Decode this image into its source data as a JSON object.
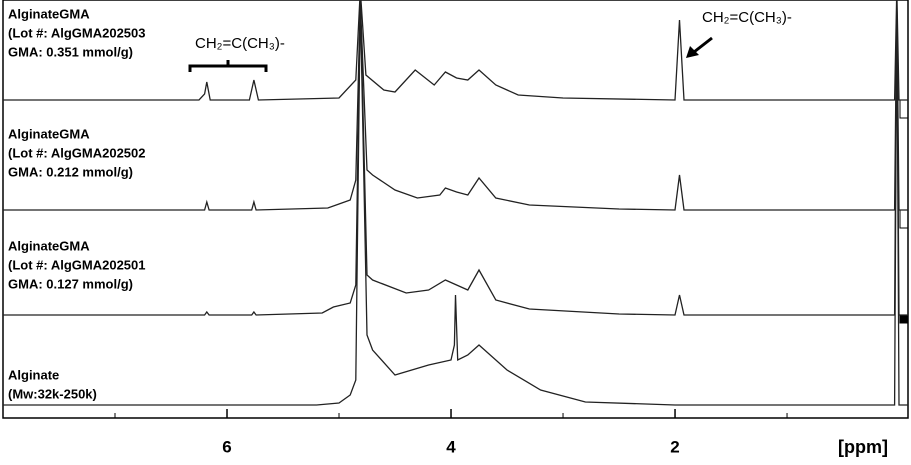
{
  "chart_data": {
    "type": "line",
    "x_label": "[ppm]",
    "xlim": [
      8.0,
      -0.08
    ],
    "xticks": [
      6,
      4,
      2
    ],
    "xminorticks": [
      7,
      5,
      3,
      1
    ],
    "color": "#222222",
    "series": [
      {
        "name": "AlginateGMA",
        "label_lines": [
          "(Lot #: AlgGMA202503",
          "GMA: 0.351 mmol/g)"
        ],
        "x": [
          8.0,
          6.25,
          6.2,
          6.18,
          6.15,
          5.8,
          5.76,
          5.72,
          5.0,
          4.85,
          4.81,
          4.76,
          4.6,
          4.5,
          4.32,
          4.15,
          4.05,
          3.95,
          3.85,
          3.75,
          3.6,
          3.4,
          3.0,
          2.0,
          1.96,
          1.92,
          0.5,
          0.04,
          0.02,
          0.0,
          -0.08
        ],
        "values": [
          0,
          0,
          6,
          18,
          0,
          0,
          20,
          0,
          2,
          20,
          110,
          25,
          10,
          8,
          30,
          15,
          28,
          22,
          20,
          30,
          15,
          5,
          2,
          0,
          80,
          0,
          0,
          0,
          110,
          0,
          0
        ]
      },
      {
        "name": "AlginateGMA",
        "label_lines": [
          "(Lot #: AlgGMA202502",
          "GMA: 0.212 mmol/g)"
        ],
        "x": [
          8.0,
          6.2,
          6.18,
          6.16,
          5.78,
          5.76,
          5.74,
          5.1,
          5.0,
          4.9,
          4.85,
          4.81,
          4.75,
          4.7,
          4.5,
          4.3,
          4.1,
          4.05,
          3.95,
          3.85,
          3.75,
          3.6,
          3.3,
          2.5,
          2.0,
          1.96,
          1.92,
          0.5,
          0.04,
          0.02,
          0.0,
          -0.08
        ],
        "values": [
          0,
          0,
          8,
          0,
          0,
          8,
          0,
          2,
          6,
          10,
          30,
          210,
          40,
          35,
          20,
          12,
          15,
          22,
          18,
          15,
          32,
          12,
          5,
          1,
          0,
          35,
          0,
          0,
          0,
          210,
          0,
          0
        ]
      },
      {
        "name": "AlginateGMA",
        "label_lines": [
          "(Lot #: AlgGMA202501",
          "GMA: 0.127 mmol/g)"
        ],
        "x": [
          8.0,
          6.2,
          6.18,
          6.16,
          5.78,
          5.76,
          5.74,
          5.15,
          5.05,
          4.9,
          4.85,
          4.81,
          4.75,
          4.7,
          4.4,
          4.2,
          4.05,
          3.95,
          3.85,
          3.75,
          3.6,
          3.3,
          2.5,
          2.0,
          1.96,
          1.92,
          0.5,
          0.04,
          0.02,
          0.0,
          -0.08
        ],
        "values": [
          0,
          0,
          3,
          0,
          0,
          3,
          0,
          2,
          8,
          12,
          30,
          315,
          40,
          35,
          22,
          25,
          35,
          30,
          25,
          45,
          15,
          6,
          1,
          0,
          20,
          0,
          0,
          0,
          315,
          0,
          0
        ]
      },
      {
        "name": "Alginate",
        "label_lines": [
          "(Mw:32k-250k)"
        ],
        "x": [
          8.0,
          5.2,
          5.0,
          4.9,
          4.85,
          4.81,
          4.75,
          4.7,
          4.5,
          4.2,
          4.0,
          3.97,
          3.96,
          3.94,
          3.85,
          3.75,
          3.5,
          3.2,
          2.8,
          2.0,
          0.5,
          0.04,
          0.02,
          0.0,
          -0.08
        ],
        "values": [
          0,
          0,
          2,
          10,
          25,
          405,
          70,
          55,
          30,
          40,
          45,
          60,
          110,
          45,
          50,
          60,
          35,
          15,
          3,
          0,
          0,
          0,
          405,
          0,
          0
        ]
      }
    ],
    "annotations": [
      {
        "text": "CH₂=C(CH₃)-"
      },
      {
        "text": "CH₂=C(CH₃)-"
      }
    ]
  }
}
